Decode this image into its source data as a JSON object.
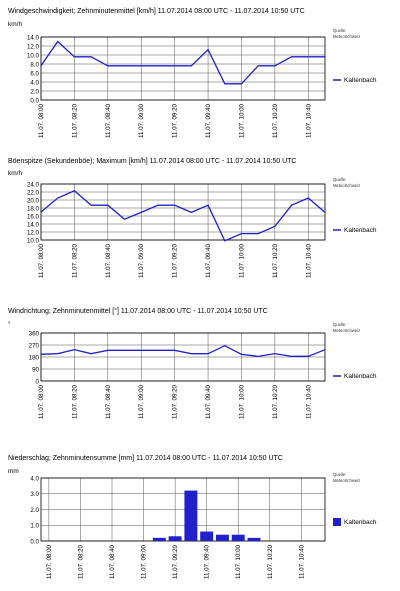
{
  "x_labels": [
    "11.07. 08:00",
    "11.07. 08:20",
    "11.07. 08:40",
    "11.07. 09:00",
    "11.07. 09:20",
    "11.07. 09:40",
    "11.07. 10:00",
    "11.07. 10:20",
    "11.07. 10:40"
  ],
  "source_label": [
    "Quelle:",
    "MeteoSchweiz"
  ],
  "colors": {
    "series": "#2020cc",
    "grid": "#555555"
  },
  "chart_data": [
    {
      "type": "line",
      "title": "Windgeschwindigkeit; Zehnminutenmittel [km/h]  11.07.2014 08:00 UTC - 11.07.2014 10:50 UTC",
      "ylabel": "km/h",
      "ylim": [
        0,
        14
      ],
      "yticks": [
        "0.0",
        "2.0",
        "4.0",
        "6.0",
        "8.0",
        "10.0",
        "12.0",
        "14.0"
      ],
      "x": [
        "08:00",
        "08:10",
        "08:20",
        "08:30",
        "08:40",
        "08:50",
        "09:00",
        "09:10",
        "09:20",
        "09:30",
        "09:40",
        "09:50",
        "10:00",
        "10:10",
        "10:20",
        "10:30",
        "10:40",
        "10:50"
      ],
      "series": [
        {
          "name": "Kaltenbach",
          "values": [
            7.6,
            13.0,
            9.6,
            9.6,
            7.6,
            7.6,
            7.6,
            7.6,
            7.6,
            7.6,
            11.2,
            3.6,
            3.6,
            7.6,
            7.6,
            9.6,
            9.6,
            9.6
          ]
        }
      ],
      "grid": true,
      "legend": "right"
    },
    {
      "type": "line",
      "title": "Böenspitze (Sekundenböe); Maximum [km/h]  11.07.2014 08:00 UTC - 11.07.2014 10:50 UTC",
      "ylabel": "km/h",
      "ylim": [
        10,
        24
      ],
      "yticks": [
        "10.0",
        "12.0",
        "14.0",
        "16.0",
        "18.0",
        "20.0",
        "22.0",
        "24.0"
      ],
      "x": [
        "08:00",
        "08:10",
        "08:20",
        "08:30",
        "08:40",
        "08:50",
        "09:00",
        "09:10",
        "09:20",
        "09:30",
        "09:40",
        "09:50",
        "10:00",
        "10:10",
        "10:20",
        "10:30",
        "10:40",
        "10:50"
      ],
      "series": [
        {
          "name": "Kaltenbach",
          "values": [
            17.0,
            20.5,
            22.3,
            18.7,
            18.7,
            15.2,
            16.9,
            18.7,
            18.7,
            16.9,
            18.7,
            9.8,
            11.6,
            11.6,
            13.4,
            18.7,
            20.5,
            16.9
          ]
        }
      ],
      "grid": true,
      "legend": "right"
    },
    {
      "type": "line",
      "title": "Windrichtung; Zehnminutenmittel [°]  11.07.2014 08:00 UTC - 11.07.2014 10:50 UTC",
      "ylabel": "°",
      "ylim": [
        0,
        360
      ],
      "yticks": [
        "0",
        "90",
        "180",
        "270",
        "360"
      ],
      "x": [
        "08:00",
        "08:10",
        "08:20",
        "08:30",
        "08:40",
        "08:50",
        "09:00",
        "09:10",
        "09:20",
        "09:30",
        "09:40",
        "09:50",
        "10:00",
        "10:10",
        "10:20",
        "10:30",
        "10:40",
        "10:50"
      ],
      "series": [
        {
          "name": "Kaltenbach",
          "values": [
            200,
            205,
            235,
            205,
            230,
            230,
            230,
            230,
            230,
            205,
            205,
            265,
            200,
            185,
            205,
            185,
            185,
            235
          ]
        }
      ],
      "grid": true,
      "legend": "right"
    },
    {
      "type": "bar",
      "title": "Niederschlag; Zehnminutensumme [mm]  11.07.2014 08:00 UTC - 11.07.2014 10:50 UTC",
      "ylabel": "mm",
      "ylim": [
        0,
        4.0
      ],
      "yticks": [
        "0.0",
        "1.0",
        "2.0",
        "3.0",
        "4.0"
      ],
      "x": [
        "08:00",
        "08:10",
        "08:20",
        "08:30",
        "08:40",
        "08:50",
        "09:00",
        "09:10",
        "09:20",
        "09:30",
        "09:40",
        "09:50",
        "10:00",
        "10:10",
        "10:20",
        "10:30",
        "10:40",
        "10:50"
      ],
      "series": [
        {
          "name": "Kaltenbach",
          "values": [
            0,
            0,
            0,
            0,
            0,
            0,
            0,
            0.2,
            0.3,
            3.2,
            0.6,
            0.4,
            0.4,
            0.2,
            0,
            0,
            0,
            0
          ]
        }
      ],
      "grid": true,
      "legend": "right"
    }
  ]
}
